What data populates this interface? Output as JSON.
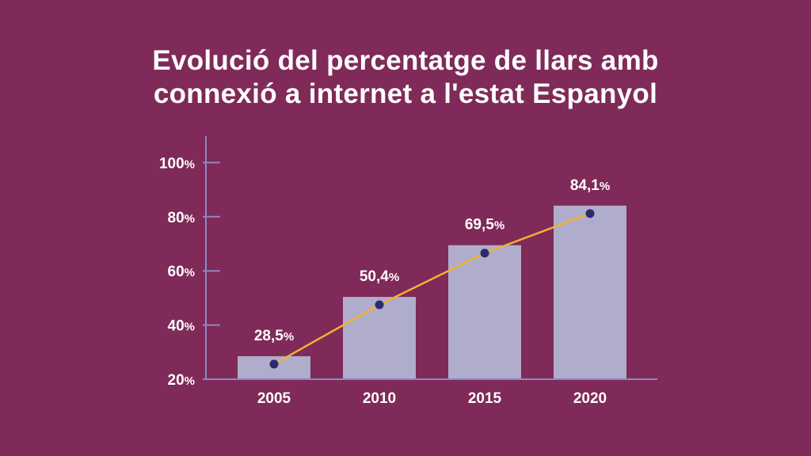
{
  "title_lines": [
    "Evolució del percentatge de llars amb",
    "connexió a internet a l'estat Espanyol"
  ],
  "chart_data": {
    "type": "bar",
    "title": "Evolució del percentatge de llars amb connexió a internet a l'estat Espanyol",
    "categories": [
      "2005",
      "2010",
      "2015",
      "2020"
    ],
    "values": [
      28.5,
      50.4,
      69.5,
      84.1
    ],
    "data_labels": [
      "28,5",
      "50,4",
      "69,5",
      "84,1"
    ],
    "label_suffix": "%",
    "trend_line": true,
    "ylim": [
      20,
      110
    ],
    "yticks": [
      20,
      40,
      60,
      80,
      100
    ],
    "ytick_labels": [
      "20",
      "40",
      "60",
      "80",
      "100"
    ],
    "tick_suffix": "%",
    "grid": false,
    "legend": "none",
    "xlabel": "",
    "ylabel": ""
  },
  "colors": {
    "background": "#7f2a58",
    "bar": "#b0accb",
    "axis": "#8d86c9",
    "line": "#f2b134",
    "marker": "#2b2a6e",
    "text": "#ffffff"
  }
}
